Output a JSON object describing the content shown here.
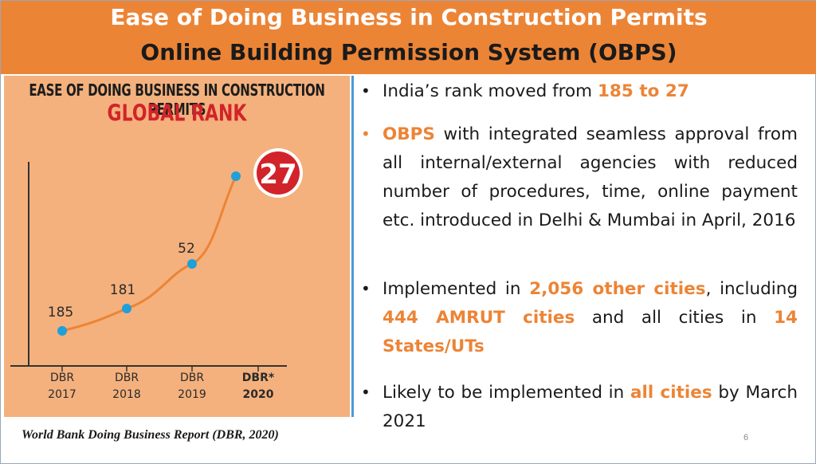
{
  "header": {
    "title": "Ease of Doing Business in Construction Permits",
    "subtitle": "Online Building Permission System (OBPS)"
  },
  "infographic": {
    "heading": "EASE OF DOING BUSINESS IN CONSTRUCTION PERMITS",
    "subheading": "GLOBAL RANK",
    "source": "World Bank Doing Business Report (DBR, 2020)"
  },
  "chart_data": {
    "type": "line",
    "categories": [
      "DBR 2017",
      "DBR 2018",
      "DBR 2019",
      "DBR* 2020"
    ],
    "category_lines": [
      [
        "DBR",
        "2017"
      ],
      [
        "DBR",
        "2018"
      ],
      [
        "DBR",
        "2019"
      ],
      [
        "DBR*",
        "2020"
      ]
    ],
    "values": [
      185,
      181,
      52,
      27
    ],
    "data_labels": [
      "185",
      "181",
      "52",
      "27"
    ],
    "line_color": "#ec8436",
    "marker_color": "#1fa0d8",
    "highlight_color": "#d2232a"
  },
  "bullets": [
    {
      "marker": "•",
      "marker_color": "#1a1a1a",
      "segments": [
        {
          "text": "India’s rank moved from ",
          "hl": false
        },
        {
          "text": "185 to 27",
          "hl": true
        }
      ]
    },
    {
      "marker": "•",
      "marker_color": "#ec8436",
      "segments": [
        {
          "text": "OBPS",
          "hl": true
        },
        {
          "text": " with integrated seamless approval from all internal/external agencies with reduced number of procedures, time, online payment etc. introduced in Delhi & Mumbai in April, 2016",
          "hl": false
        }
      ]
    },
    {
      "marker": "•",
      "marker_color": "#1a1a1a",
      "segments": [
        {
          "text": "Implemented in ",
          "hl": false
        },
        {
          "text": "2,056 other cities",
          "hl": true
        },
        {
          "text": ", including ",
          "hl": false
        },
        {
          "text": "444 AMRUT cities",
          "hl": true
        },
        {
          "text": " and all cities in ",
          "hl": false
        },
        {
          "text": "14 States/UTs",
          "hl": true
        }
      ]
    },
    {
      "marker": "•",
      "marker_color": "#1a1a1a",
      "segments": [
        {
          "text": "Likely to be implemented in ",
          "hl": false
        },
        {
          "text": "all cities",
          "hl": true
        },
        {
          "text": " by March 2021",
          "hl": false
        }
      ]
    }
  ],
  "slide": {
    "page_number": "6"
  },
  "colors": {
    "accent": "#ec8436",
    "panel_bg": "#f4b17d",
    "divider": "#4d9ad6"
  }
}
